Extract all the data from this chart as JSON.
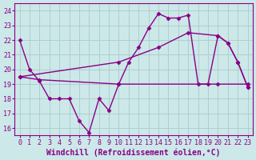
{
  "xlabel": "Windchill (Refroidissement éolien,°C)",
  "background_color": "#cce8e8",
  "grid_color": "#aacccc",
  "line_color": "#880088",
  "xlim": [
    -0.5,
    23.5
  ],
  "ylim": [
    15.5,
    24.5
  ],
  "yticks": [
    16,
    17,
    18,
    19,
    20,
    21,
    22,
    23,
    24
  ],
  "xticks": [
    0,
    1,
    2,
    3,
    4,
    5,
    6,
    7,
    8,
    9,
    10,
    11,
    12,
    13,
    14,
    15,
    16,
    17,
    18,
    19,
    20,
    21,
    22,
    23
  ],
  "line1_x": [
    0,
    1,
    2,
    3,
    4,
    5,
    6,
    7,
    8,
    9,
    10,
    11,
    12,
    13,
    14,
    15,
    16,
    17,
    18,
    19,
    20,
    21,
    22,
    23
  ],
  "line1_y": [
    22.0,
    20.0,
    19.2,
    18.0,
    18.0,
    18.0,
    16.5,
    15.7,
    18.0,
    17.2,
    19.0,
    20.5,
    21.5,
    22.8,
    23.8,
    23.5,
    23.5,
    23.7,
    19.0,
    19.0,
    22.3,
    21.8,
    20.5,
    18.8
  ],
  "line2_x": [
    0,
    2,
    10,
    20,
    23
  ],
  "line2_y": [
    19.5,
    19.3,
    19.0,
    19.0,
    19.0
  ],
  "line3_x": [
    0,
    10,
    14,
    17,
    20,
    21,
    22,
    23
  ],
  "line3_y": [
    19.5,
    20.5,
    21.5,
    22.5,
    22.3,
    21.8,
    20.5,
    18.8
  ],
  "marker": "D",
  "marker_size": 2.5,
  "linewidth": 1.0,
  "xlabel_fontsize": 7,
  "tick_fontsize": 6
}
